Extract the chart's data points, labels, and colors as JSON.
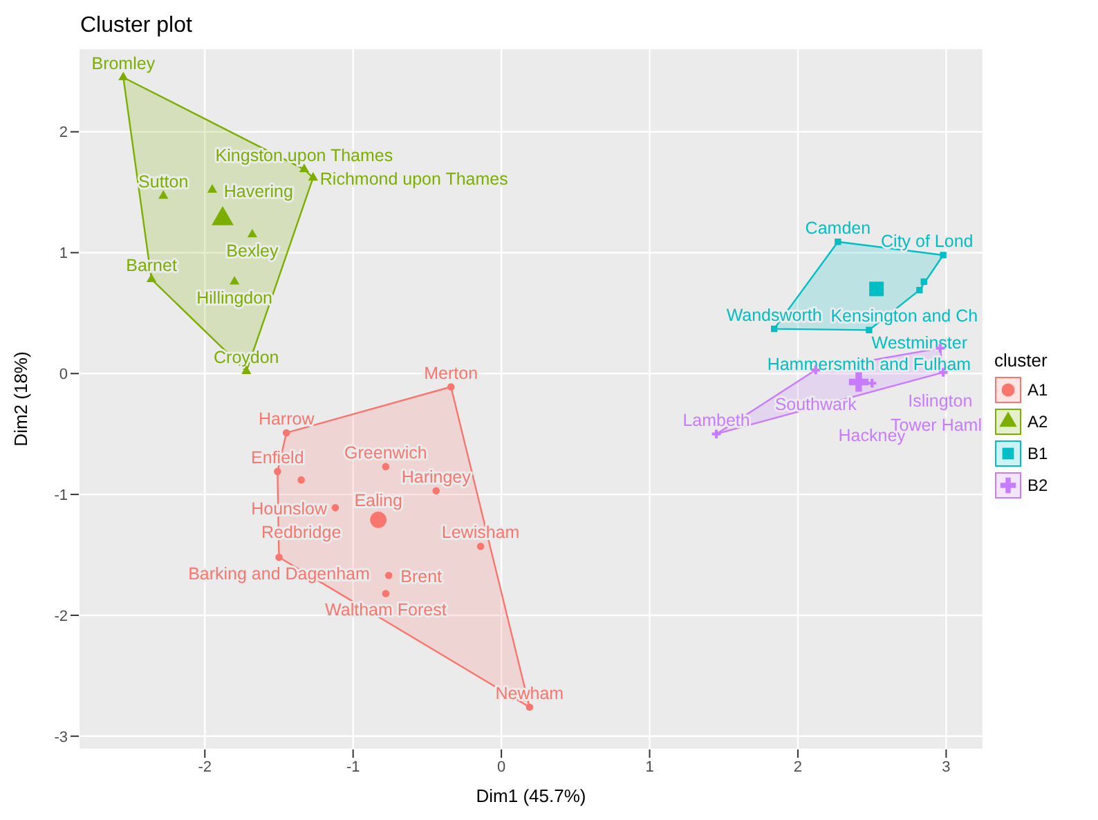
{
  "chart_data": {
    "type": "scatter",
    "title": "Cluster plot",
    "xlabel": "Dim1 (45.7%)",
    "ylabel": "Dim2 (18%)",
    "legend_title": "cluster",
    "legend": "right",
    "grid": true,
    "xlim": [
      -2.85,
      3.25
    ],
    "ylim": [
      -3.11,
      2.69
    ],
    "xticks": [
      -2,
      -1,
      0,
      1,
      2,
      3
    ],
    "yticks": [
      -3,
      -2,
      -1,
      0,
      1,
      2
    ],
    "series": [
      {
        "name": "A1",
        "color": "#f8766d",
        "marker": "circle",
        "x": [
          -0.34,
          -1.45,
          -1.51,
          -1.35,
          -0.78,
          -0.44,
          -1.12,
          -0.14,
          -1.5,
          -0.76,
          -0.78,
          0.19
        ],
        "values": [
          -0.11,
          -0.49,
          -0.81,
          -0.88,
          -0.77,
          -0.97,
          -1.11,
          -1.43,
          -1.52,
          -1.67,
          -1.82,
          -2.76
        ]
      },
      {
        "name": "A2",
        "color": "#7cae00",
        "marker": "triangle",
        "x": [
          -2.55,
          -2.28,
          -1.95,
          -1.33,
          -1.27,
          -1.68,
          -2.36,
          -1.8,
          -1.72
        ],
        "values": [
          2.45,
          1.47,
          1.52,
          1.69,
          1.62,
          1.15,
          0.78,
          0.76,
          0.02
        ]
      },
      {
        "name": "B1",
        "color": "#00bfc4",
        "marker": "square",
        "x": [
          2.27,
          2.98,
          2.85,
          2.82,
          1.84,
          2.48
        ],
        "values": [
          1.09,
          0.98,
          0.76,
          0.69,
          0.37,
          0.36
        ]
      },
      {
        "name": "B2",
        "color": "#c77cff",
        "marker": "cross",
        "x": [
          2.12,
          2.5,
          2.96,
          2.98,
          1.45
        ],
        "values": [
          0.03,
          -0.08,
          0.21,
          0.01,
          -0.5
        ]
      },
      {
        "color": "#f8766d",
        "marker": "circle",
        "x": [
          -0.83
        ],
        "values": [
          -1.21
        ]
      },
      {
        "color": "#7cae00",
        "marker": "triangle",
        "x": [
          -1.88
        ],
        "values": [
          1.28
        ]
      },
      {
        "color": "#00bfc4",
        "marker": "square",
        "x": [
          2.53
        ],
        "values": [
          0.7
        ]
      },
      {
        "color": "#c77cff",
        "marker": "cross",
        "x": [
          2.41
        ],
        "values": [
          -0.07
        ]
      }
    ],
    "annotations": [
      {
        "text": "Merton",
        "x": -0.34,
        "y": -0.11
      },
      {
        "text": "Harrow",
        "x": -1.45,
        "y": -0.49
      },
      {
        "text": "Enfield",
        "x": -1.51,
        "y": -0.81
      },
      {
        "text": "Redbridge",
        "x": -1.35,
        "y": -0.88
      },
      {
        "text": "Greenwich",
        "x": -0.78,
        "y": -0.77
      },
      {
        "text": "Haringey",
        "x": -0.44,
        "y": -0.97
      },
      {
        "text": "Hounslow",
        "x": -1.12,
        "y": -1.11
      },
      {
        "text": "Ealing",
        "x": -0.83,
        "y": -1.21
      },
      {
        "text": "Lewisham",
        "x": -0.14,
        "y": -1.43
      },
      {
        "text": "Barking and Dagenham",
        "x": -1.5,
        "y": -1.52
      },
      {
        "text": "Brent",
        "x": -0.76,
        "y": -1.67
      },
      {
        "text": "Waltham Forest",
        "x": -0.78,
        "y": -1.82
      },
      {
        "text": "Newham",
        "x": 0.19,
        "y": -2.76
      },
      {
        "text": "Bromley",
        "x": -2.55,
        "y": 2.45
      },
      {
        "text": "Sutton",
        "x": -2.28,
        "y": 1.47
      },
      {
        "text": "Havering",
        "x": -1.95,
        "y": 1.52
      },
      {
        "text": "Kingston upon Thames",
        "x": -1.33,
        "y": 1.69
      },
      {
        "text": "Richmond upon Thames",
        "x": -1.27,
        "y": 1.62
      },
      {
        "text": "Bexley",
        "x": -1.68,
        "y": 1.15
      },
      {
        "text": "Barnet",
        "x": -2.36,
        "y": 0.78
      },
      {
        "text": "Hillingdon",
        "x": -1.8,
        "y": 0.76
      },
      {
        "text": "Croydon",
        "x": -1.72,
        "y": 0.02
      },
      {
        "text": "Camden",
        "x": 2.27,
        "y": 1.09
      },
      {
        "text": "City of Lond",
        "x": 2.98,
        "y": 0.98
      },
      {
        "text": "Kensington and Ch",
        "x": 2.85,
        "y": 0.76
      },
      {
        "text": "Westminster",
        "x": 2.82,
        "y": 0.69
      },
      {
        "text": "Wandsworth",
        "x": 1.84,
        "y": 0.37
      },
      {
        "text": "Hammersmith and Fulham",
        "x": 2.48,
        "y": 0.36
      },
      {
        "text": "Southwark",
        "x": 2.12,
        "y": 0.03
      },
      {
        "text": "Hackney",
        "x": 2.5,
        "y": -0.08
      },
      {
        "text": "Islington",
        "x": 2.96,
        "y": 0.21
      },
      {
        "text": "Tower Haml",
        "x": 2.98,
        "y": 0.01
      },
      {
        "text": "Lambeth",
        "x": 1.45,
        "y": -0.5
      }
    ]
  }
}
